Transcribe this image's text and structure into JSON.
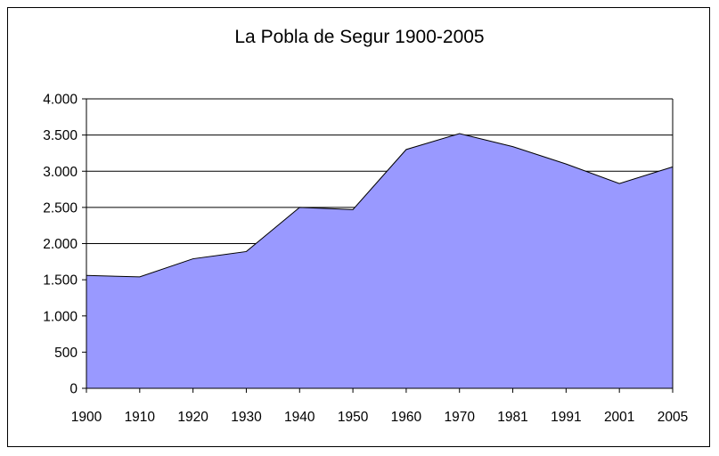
{
  "chart_data": {
    "type": "area",
    "title": "La Pobla de Segur 1900-2005",
    "xlabel": "",
    "ylabel": "",
    "categories": [
      "1900",
      "1910",
      "1920",
      "1930",
      "1940",
      "1950",
      "1960",
      "1970",
      "1981",
      "1991",
      "2001",
      "2005"
    ],
    "x": [
      1900,
      1910,
      1920,
      1930,
      1940,
      1950,
      1960,
      1970,
      1981,
      1991,
      2001,
      2005
    ],
    "values": [
      1560,
      1540,
      1790,
      1890,
      2500,
      2470,
      3300,
      3520,
      3340,
      3100,
      2830,
      3060
    ],
    "ylim": [
      0,
      4000
    ],
    "yticks": [
      0,
      500,
      1000,
      1500,
      2000,
      2500,
      3000,
      3500,
      4000
    ],
    "ytick_labels": [
      "0",
      "500",
      "1.000",
      "1.500",
      "2.000",
      "2.500",
      "3.000",
      "3.500",
      "4.000"
    ],
    "grid": true,
    "legend": "none",
    "colors": {
      "fill": "#9999ff",
      "line": "#000000",
      "grid": "#000000"
    }
  }
}
